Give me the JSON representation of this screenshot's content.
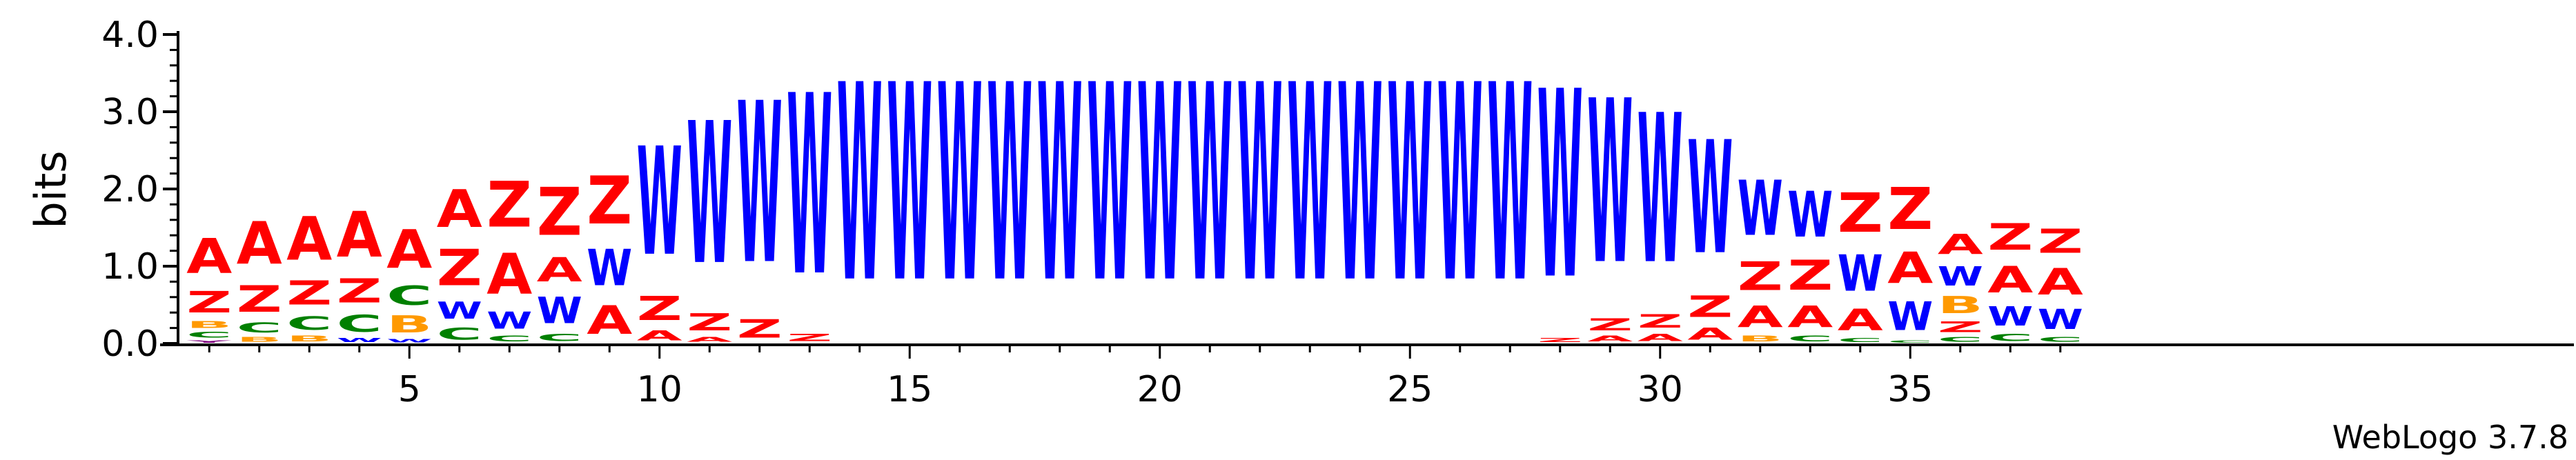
{
  "chart_data": {
    "type": "sequence-logo",
    "ylabel": "bits",
    "ylim": [
      0,
      4.1
    ],
    "yticks": [
      "0.0",
      "1.0",
      "2.0",
      "3.0",
      "4.0"
    ],
    "xticks": [
      5,
      10,
      15,
      20,
      25,
      30,
      35
    ],
    "credit": "WebLogo 3.7.8",
    "colors": {
      "A": "#ff0000",
      "Z": "#ff0000",
      "W": "#0000ff",
      "C": "#008000",
      "B": "#ff9900",
      "Y": "#800080"
    },
    "positions": [
      {
        "pos": 1,
        "stack": [
          {
            "l": "Y",
            "h": 0.05
          },
          {
            "l": "C",
            "h": 0.12
          },
          {
            "l": "B",
            "h": 0.14
          },
          {
            "l": "Z",
            "h": 0.45
          },
          {
            "l": "A",
            "h": 0.73
          }
        ]
      },
      {
        "pos": 2,
        "stack": [
          {
            "l": "B",
            "h": 0.1
          },
          {
            "l": "C",
            "h": 0.2
          },
          {
            "l": "Z",
            "h": 0.55
          },
          {
            "l": "A",
            "h": 0.88
          }
        ]
      },
      {
        "pos": 3,
        "stack": [
          {
            "l": "B",
            "h": 0.12
          },
          {
            "l": "C",
            "h": 0.28
          },
          {
            "l": "Z",
            "h": 0.5
          },
          {
            "l": "A",
            "h": 0.9
          }
        ]
      },
      {
        "pos": 4,
        "stack": [
          {
            "l": "W",
            "h": 0.08
          },
          {
            "l": "C",
            "h": 0.35
          },
          {
            "l": "Z",
            "h": 0.5
          },
          {
            "l": "A",
            "h": 0.95
          }
        ]
      },
      {
        "pos": 5,
        "stack": [
          {
            "l": "W",
            "h": 0.07
          },
          {
            "l": "B",
            "h": 0.35
          },
          {
            "l": "C",
            "h": 0.4
          },
          {
            "l": "A",
            "h": 0.8
          }
        ]
      },
      {
        "pos": 6,
        "stack": [
          {
            "l": "C",
            "h": 0.25
          },
          {
            "l": "W",
            "h": 0.35
          },
          {
            "l": "Z",
            "h": 0.75
          },
          {
            "l": "A",
            "h": 0.78
          }
        ]
      },
      {
        "pos": 7,
        "stack": [
          {
            "l": "C",
            "h": 0.12
          },
          {
            "l": "W",
            "h": 0.35
          },
          {
            "l": "A",
            "h": 0.85
          },
          {
            "l": "Z",
            "h": 0.95
          }
        ]
      },
      {
        "pos": 8,
        "stack": [
          {
            "l": "C",
            "h": 0.15
          },
          {
            "l": "W",
            "h": 0.55
          },
          {
            "l": "A",
            "h": 0.5
          },
          {
            "l": "Z",
            "h": 1.0
          }
        ]
      },
      {
        "pos": 9,
        "stack": [
          {
            "l": "A",
            "h": 0.6
          },
          {
            "l": "W",
            "h": 0.75
          },
          {
            "l": "Z",
            "h": 1.0
          }
        ]
      },
      {
        "pos": 10,
        "stack": [
          {
            "l": "A",
            "h": 0.2
          },
          {
            "l": "Z",
            "h": 0.5
          },
          {
            "l": "W",
            "h": 2.25
          }
        ]
      },
      {
        "pos": 11,
        "stack": [
          {
            "l": "A",
            "h": 0.1
          },
          {
            "l": "Z",
            "h": 0.35
          },
          {
            "l": "W",
            "h": 2.95
          }
        ]
      },
      {
        "pos": 12,
        "stack": [
          {
            "l": "Z",
            "h": 0.38
          },
          {
            "l": "W",
            "h": 3.35
          }
        ]
      },
      {
        "pos": 13,
        "stack": [
          {
            "l": "Z",
            "h": 0.15
          },
          {
            "l": "W",
            "h": 3.75
          }
        ]
      },
      {
        "pos": 14,
        "stack": [
          {
            "l": "W",
            "h": 4.1
          }
        ]
      },
      {
        "pos": 15,
        "stack": [
          {
            "l": "W",
            "h": 4.1
          }
        ]
      },
      {
        "pos": 16,
        "stack": [
          {
            "l": "W",
            "h": 4.1
          }
        ]
      },
      {
        "pos": 17,
        "stack": [
          {
            "l": "W",
            "h": 4.1
          }
        ]
      },
      {
        "pos": 18,
        "stack": [
          {
            "l": "W",
            "h": 4.1
          }
        ]
      },
      {
        "pos": 19,
        "stack": [
          {
            "l": "W",
            "h": 4.1
          }
        ]
      },
      {
        "pos": 20,
        "stack": [
          {
            "l": "W",
            "h": 4.1
          }
        ]
      },
      {
        "pos": 21,
        "stack": [
          {
            "l": "W",
            "h": 4.1
          }
        ]
      },
      {
        "pos": 22,
        "stack": [
          {
            "l": "W",
            "h": 4.1
          }
        ]
      },
      {
        "pos": 23,
        "stack": [
          {
            "l": "W",
            "h": 4.1
          }
        ]
      },
      {
        "pos": 24,
        "stack": [
          {
            "l": "W",
            "h": 4.1
          }
        ]
      },
      {
        "pos": 25,
        "stack": [
          {
            "l": "W",
            "h": 4.1
          }
        ]
      },
      {
        "pos": 26,
        "stack": [
          {
            "l": "W",
            "h": 4.1
          }
        ]
      },
      {
        "pos": 27,
        "stack": [
          {
            "l": "W",
            "h": 4.1
          }
        ]
      },
      {
        "pos": 28,
        "stack": [
          {
            "l": "Z",
            "h": 0.08
          },
          {
            "l": "W",
            "h": 3.9
          }
        ]
      },
      {
        "pos": 29,
        "stack": [
          {
            "l": "A",
            "h": 0.12
          },
          {
            "l": "Z",
            "h": 0.25
          },
          {
            "l": "W",
            "h": 3.4
          }
        ]
      },
      {
        "pos": 30,
        "stack": [
          {
            "l": "A",
            "h": 0.15
          },
          {
            "l": "Z",
            "h": 0.28
          },
          {
            "l": "W",
            "h": 3.1
          }
        ]
      },
      {
        "pos": 31,
        "stack": [
          {
            "l": "A",
            "h": 0.25
          },
          {
            "l": "Z",
            "h": 0.45
          },
          {
            "l": "W",
            "h": 2.35
          }
        ]
      },
      {
        "pos": 32,
        "stack": [
          {
            "l": "B",
            "h": 0.12
          },
          {
            "l": "A",
            "h": 0.45
          },
          {
            "l": "Z",
            "h": 0.6
          },
          {
            "l": "W",
            "h": 1.15
          }
        ]
      },
      {
        "pos": 33,
        "stack": [
          {
            "l": "C",
            "h": 0.12
          },
          {
            "l": "A",
            "h": 0.45
          },
          {
            "l": "Z",
            "h": 0.62
          },
          {
            "l": "W",
            "h": 0.95
          }
        ]
      },
      {
        "pos": 34,
        "stack": [
          {
            "l": "C",
            "h": 0.08
          },
          {
            "l": "A",
            "h": 0.45
          },
          {
            "l": "W",
            "h": 0.75
          },
          {
            "l": "Z",
            "h": 0.82
          }
        ]
      },
      {
        "pos": 35,
        "stack": [
          {
            "l": "C",
            "h": 0.05
          },
          {
            "l": "W",
            "h": 0.6
          },
          {
            "l": "A",
            "h": 0.65
          },
          {
            "l": "Z",
            "h": 0.88
          }
        ]
      },
      {
        "pos": 36,
        "stack": [
          {
            "l": "C",
            "h": 0.1
          },
          {
            "l": "Z",
            "h": 0.22
          },
          {
            "l": "B",
            "h": 0.35
          },
          {
            "l": "W",
            "h": 0.4
          },
          {
            "l": "A",
            "h": 0.42
          }
        ]
      },
      {
        "pos": 37,
        "stack": [
          {
            "l": "C",
            "h": 0.15
          },
          {
            "l": "W",
            "h": 0.4
          },
          {
            "l": "A",
            "h": 0.55
          },
          {
            "l": "Z",
            "h": 0.55
          }
        ]
      },
      {
        "pos": 38,
        "stack": [
          {
            "l": "C",
            "h": 0.1
          },
          {
            "l": "W",
            "h": 0.42
          },
          {
            "l": "A",
            "h": 0.55
          },
          {
            "l": "Z",
            "h": 0.5
          }
        ]
      }
    ]
  }
}
